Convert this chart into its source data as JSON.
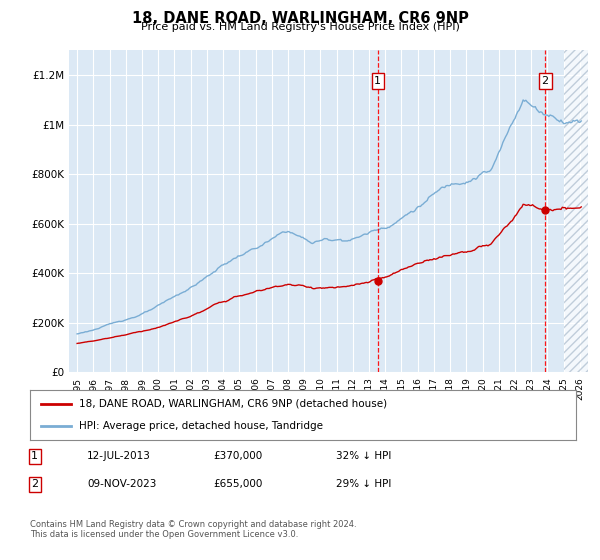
{
  "title": "18, DANE ROAD, WARLINGHAM, CR6 9NP",
  "subtitle": "Price paid vs. HM Land Registry's House Price Index (HPI)",
  "legend_line1": "18, DANE ROAD, WARLINGHAM, CR6 9NP (detached house)",
  "legend_line2": "HPI: Average price, detached house, Tandridge",
  "annotation1_label": "1",
  "annotation1_date": "12-JUL-2013",
  "annotation1_price": "£370,000",
  "annotation1_hpi": "32% ↓ HPI",
  "annotation2_label": "2",
  "annotation2_date": "09-NOV-2023",
  "annotation2_price": "£655,000",
  "annotation2_hpi": "29% ↓ HPI",
  "sale1_x": 2013.54,
  "sale1_y": 370000,
  "sale2_x": 2023.86,
  "sale2_y": 655000,
  "sale_color": "#cc0000",
  "hpi_color": "#7aadd4",
  "background_color": "#dce9f5",
  "ylabel_ticks": [
    "£0",
    "£200K",
    "£400K",
    "£600K",
    "£800K",
    "£1M",
    "£1.2M"
  ],
  "ytick_vals": [
    0,
    200000,
    400000,
    600000,
    800000,
    1000000,
    1200000
  ],
  "ylim": [
    0,
    1300000
  ],
  "xlim_start": 1994.5,
  "xlim_end": 2026.5,
  "future_x": 2025.0,
  "footer": "Contains HM Land Registry data © Crown copyright and database right 2024.\nThis data is licensed under the Open Government Licence v3.0."
}
